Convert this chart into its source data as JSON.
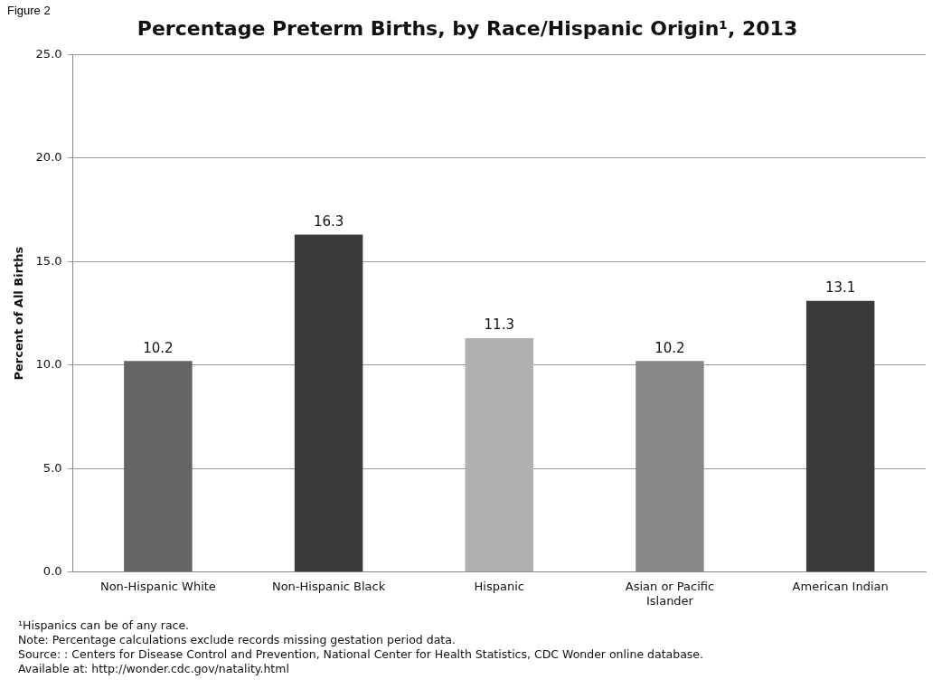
{
  "chart_data": {
    "type": "bar",
    "title": "Percentage Preterm Births, by Race/Hispanic Origin¹, 2013",
    "ylabel": "Percent of All Births",
    "categories": [
      "Non-Hispanic White",
      "Non-Hispanic Black",
      "Hispanic",
      "Asian or Pacific Islander",
      "American Indian"
    ],
    "values": [
      10.2,
      16.3,
      11.3,
      10.2,
      13.1
    ],
    "colors": [
      "#656565",
      "#3a3a3a",
      "#b0b0b0",
      "#878787",
      "#3a3a3a"
    ],
    "ylim": [
      0,
      25
    ],
    "yticks": [
      {
        "value": 0,
        "label": "0.0"
      },
      {
        "value": 5,
        "label": "5.0"
      },
      {
        "value": 10,
        "label": "10.0"
      },
      {
        "value": 15,
        "label": "15.0"
      },
      {
        "value": 20,
        "label": "20.0"
      },
      {
        "value": 25,
        "label": "25.0"
      }
    ],
    "grid": "y",
    "data_labels": true,
    "legend": false,
    "annotations": [
      "Figure 2",
      "¹Hispanics can be of any race.",
      "Note:  Percentage calculations exclude records missing gestation period data.",
      "Source: :  Centers for Disease Control and Prevention, National Center for Health Statistics, CDC Wonder online database.  Available at: http://wonder.cdc.gov/natality.html"
    ]
  }
}
